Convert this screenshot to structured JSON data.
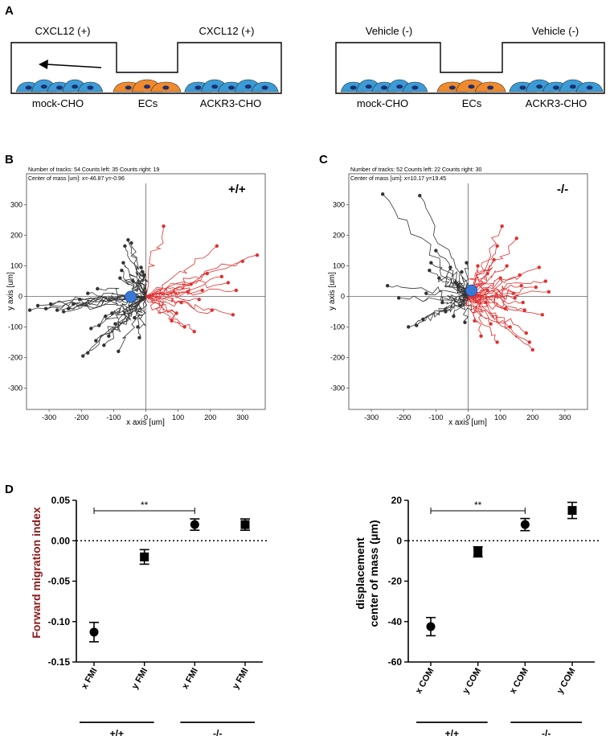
{
  "panels": {
    "A": "A",
    "B": "B",
    "C": "C",
    "D": "D"
  },
  "panel_a": {
    "left": {
      "label_left": "CXCL12 (+)",
      "label_right": "CXCL12 (+)",
      "cells": [
        "mock-CHO",
        "ECs",
        "ACKR3-CHO"
      ],
      "arrow": true
    },
    "right": {
      "label_left": "Vehicle (-)",
      "label_right": "Vehicle (-)",
      "cells": [
        "mock-CHO",
        "ECs",
        "ACKR3-CHO"
      ],
      "arrow": false
    },
    "colors": {
      "blue_cell": "#3b9bd6",
      "orange_cell": "#f08a2c",
      "nucleus": "#1c2f6e",
      "arrow": "#000000"
    }
  },
  "chart_data": [
    {
      "type": "scatter",
      "panel": "B",
      "genotype": "+/+",
      "info_line1": "Number of tracks: 54  Counts left: 35  Counts right: 19",
      "info_line2": "Center of mass [um]: x=-46.87 y=-0.96",
      "xlabel": "x axis [um]",
      "ylabel": "y axis [um]",
      "xlim": [
        -370,
        370
      ],
      "ylim": [
        -370,
        370
      ],
      "xticks": [
        -300,
        -200,
        -100,
        0,
        100,
        200,
        300
      ],
      "yticks": [
        -300,
        -200,
        -100,
        0,
        100,
        200,
        300
      ],
      "xtick_labels": [
        "-300",
        "-200",
        "-100",
        "0",
        "100",
        "200",
        "300"
      ],
      "ytick_labels": [
        "-300",
        "-200",
        "-100",
        "0",
        "100",
        "200",
        "300"
      ],
      "center_of_mass": [
        -46.87,
        -0.96
      ],
      "track_colors": {
        "left": "#333333",
        "right": "#e03030",
        "com": "#3a78d8"
      },
      "left_endpoints": [
        [
          -360,
          -45
        ],
        [
          -335,
          -30
        ],
        [
          -310,
          -40
        ],
        [
          -295,
          -25
        ],
        [
          -275,
          -45
        ],
        [
          -255,
          -50
        ],
        [
          -240,
          -40
        ],
        [
          -225,
          -25
        ],
        [
          -205,
          -10
        ],
        [
          -195,
          -195
        ],
        [
          -180,
          -185
        ],
        [
          -170,
          -105
        ],
        [
          -155,
          -145
        ],
        [
          -145,
          -95
        ],
        [
          -130,
          -160
        ],
        [
          -125,
          -65
        ],
        [
          -115,
          -130
        ],
        [
          -105,
          -55
        ],
        [
          -95,
          -90
        ],
        [
          -85,
          -180
        ],
        [
          -80,
          60
        ],
        [
          -75,
          85
        ],
        [
          -70,
          110
        ],
        [
          -65,
          165
        ],
        [
          -55,
          185
        ],
        [
          -45,
          175
        ],
        [
          -40,
          50
        ],
        [
          -35,
          -70
        ],
        [
          -25,
          -100
        ],
        [
          -20,
          -135
        ],
        [
          -15,
          95
        ],
        [
          -10,
          80
        ],
        [
          -5,
          70
        ],
        [
          -150,
          25
        ],
        [
          -180,
          10
        ]
      ],
      "right_endpoints": [
        [
          55,
          230
        ],
        [
          80,
          -80
        ],
        [
          95,
          -55
        ],
        [
          110,
          -20
        ],
        [
          120,
          -100
        ],
        [
          130,
          15
        ],
        [
          140,
          40
        ],
        [
          150,
          -115
        ],
        [
          165,
          -10
        ],
        [
          175,
          20
        ],
        [
          190,
          75
        ],
        [
          205,
          -45
        ],
        [
          220,
          165
        ],
        [
          235,
          65
        ],
        [
          255,
          45
        ],
        [
          270,
          -60
        ],
        [
          280,
          20
        ],
        [
          300,
          115
        ],
        [
          345,
          135
        ]
      ]
    },
    {
      "type": "scatter",
      "panel": "C",
      "genotype": "-/-",
      "info_line1": "Number of tracks: 52  Counts left: 22  Counts right: 30",
      "info_line2": "Center of mass [um]: x=10.17 y=19.45",
      "xlabel": "x axis [um]",
      "ylabel": "y axis [um]",
      "xlim": [
        -370,
        370
      ],
      "ylim": [
        -370,
        370
      ],
      "xticks": [
        -300,
        -200,
        -100,
        0,
        100,
        200,
        300
      ],
      "yticks": [
        -300,
        -200,
        -100,
        0,
        100,
        200,
        300
      ],
      "xtick_labels": [
        "-300",
        "-200",
        "-100",
        "0",
        "100",
        "200",
        "300"
      ],
      "ytick_labels": [
        "-300",
        "-200",
        "-100",
        "0",
        "100",
        "200",
        "300"
      ],
      "center_of_mass": [
        10.17,
        19.45
      ],
      "track_colors": {
        "left": "#333333",
        "right": "#e03030",
        "com": "#3a78d8"
      },
      "left_endpoints": [
        [
          -265,
          335
        ],
        [
          -150,
          330
        ],
        [
          -250,
          35
        ],
        [
          -215,
          -5
        ],
        [
          -185,
          -100
        ],
        [
          -160,
          -95
        ],
        [
          -140,
          -75
        ],
        [
          -130,
          10
        ],
        [
          -120,
          85
        ],
        [
          -115,
          110
        ],
        [
          -100,
          150
        ],
        [
          -90,
          60
        ],
        [
          -80,
          -20
        ],
        [
          -70,
          -50
        ],
        [
          -55,
          95
        ],
        [
          -45,
          -65
        ],
        [
          -40,
          45
        ],
        [
          -30,
          30
        ],
        [
          -25,
          -30
        ],
        [
          -20,
          80
        ],
        [
          -10,
          -85
        ],
        [
          -5,
          110
        ]
      ],
      "right_endpoints": [
        [
          20,
          -80
        ],
        [
          30,
          100
        ],
        [
          40,
          -130
        ],
        [
          55,
          -20
        ],
        [
          60,
          20
        ],
        [
          70,
          -90
        ],
        [
          80,
          120
        ],
        [
          90,
          -150
        ],
        [
          100,
          60
        ],
        [
          105,
          230
        ],
        [
          115,
          -40
        ],
        [
          120,
          100
        ],
        [
          130,
          -100
        ],
        [
          140,
          10
        ],
        [
          150,
          190
        ],
        [
          160,
          70
        ],
        [
          170,
          -20
        ],
        [
          175,
          -45
        ],
        [
          180,
          -120
        ],
        [
          190,
          -150
        ],
        [
          200,
          -175
        ],
        [
          210,
          30
        ],
        [
          220,
          95
        ],
        [
          230,
          -60
        ],
        [
          240,
          50
        ],
        [
          250,
          15
        ],
        [
          60,
          75
        ],
        [
          90,
          165
        ],
        [
          145,
          -5
        ],
        [
          165,
          35
        ]
      ]
    },
    {
      "type": "scatter",
      "panel": "D-left",
      "subtype": "errorbar",
      "ylabel": "Forward migration index",
      "categories": [
        "x FMI",
        "y FMI",
        "x FMI",
        "y FMI"
      ],
      "values": [
        -0.113,
        -0.02,
        0.02,
        0.02
      ],
      "errors": [
        0.012,
        0.009,
        0.007,
        0.007
      ],
      "ylim": [
        -0.15,
        0.05
      ],
      "yticks": [
        -0.15,
        -0.1,
        -0.05,
        0.0,
        0.05
      ],
      "ytick_labels": [
        "-0.15",
        "-0.10",
        "-0.05",
        "0.00",
        "0.05"
      ],
      "baseline": 0,
      "significance": {
        "from": 0,
        "to": 2,
        "label": "**"
      },
      "groups": [
        {
          "label": "+/+",
          "from": 0,
          "to": 1
        },
        {
          "label": "-/-",
          "from": 2,
          "to": 3
        }
      ],
      "ylabel_color": "#8b1a1a"
    },
    {
      "type": "scatter",
      "panel": "D-right",
      "subtype": "errorbar",
      "ylabel_line1": "displacement",
      "ylabel_line2": "center of mass (μm)",
      "categories": [
        "x COM",
        "y COM",
        "x COM",
        "y COM"
      ],
      "values": [
        -42.5,
        -5.5,
        8.0,
        15.0
      ],
      "errors": [
        4.5,
        2.5,
        3.0,
        4.0
      ],
      "ylim": [
        -60,
        20
      ],
      "yticks": [
        -60,
        -40,
        -20,
        0,
        20
      ],
      "ytick_labels": [
        "-60",
        "-40",
        "-20",
        "0",
        "20"
      ],
      "baseline": 0,
      "significance": {
        "from": 0,
        "to": 2,
        "label": "**"
      },
      "groups": [
        {
          "label": "+/+",
          "from": 0,
          "to": 1
        },
        {
          "label": "-/-",
          "from": 2,
          "to": 3
        }
      ],
      "ylabel_color": "#000000"
    }
  ]
}
